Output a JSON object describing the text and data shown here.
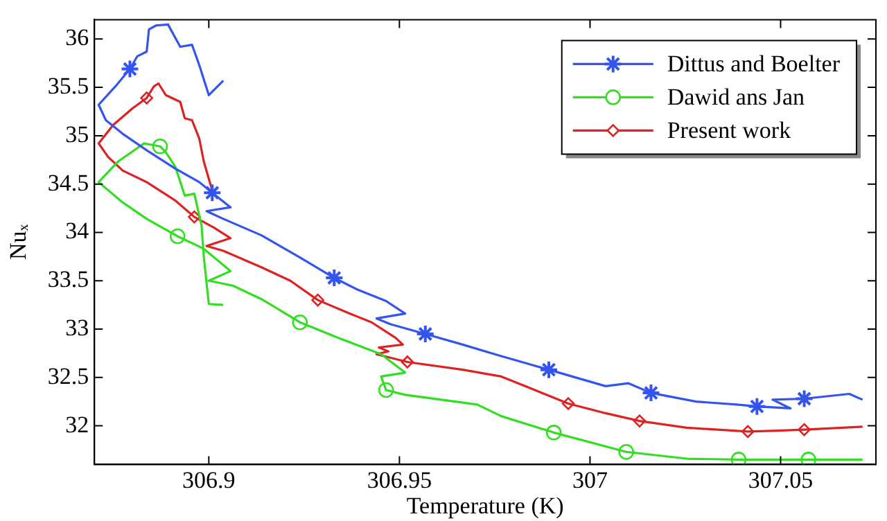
{
  "chart_data": {
    "type": "line",
    "xlabel": "Temperature (K)",
    "ylabel": "Nuₓ",
    "xlim": [
      306.87,
      307.075
    ],
    "ylim": [
      31.6,
      36.2
    ],
    "xticks": [
      306.9,
      306.95,
      307,
      307.05
    ],
    "yticks": [
      32,
      32.5,
      33,
      33.5,
      34,
      34.5,
      35,
      35.5,
      36
    ],
    "legend": "top right",
    "line_style": "solid",
    "series": [
      {
        "name": "Dittus and Boelter",
        "color": "#3355ee",
        "marker": "none",
        "x": [
          306.9038,
          306.9,
          306.8975,
          306.8956,
          306.8925,
          306.8893,
          306.8862,
          306.8843,
          306.8837,
          306.8812,
          306.8793,
          306.8755,
          306.8711,
          306.873,
          306.8774,
          306.8837,
          306.8912,
          306.8975,
          306.9009,
          306.9057,
          306.8994,
          306.9038,
          306.9138,
          306.9239,
          306.9329,
          306.9389,
          306.9465,
          306.9515,
          306.944,
          306.9477,
          306.9568,
          306.9666,
          306.9767,
          306.9892,
          307.0041,
          307.0101,
          307.016,
          307.0278,
          307.0384,
          307.0438,
          307.0526,
          307.0479,
          307.0562,
          307.068,
          307.0715
        ],
        "values": [
          35.57,
          35.42,
          35.73,
          35.94,
          35.92,
          36.15,
          36.14,
          36.1,
          35.87,
          35.82,
          35.69,
          35.51,
          35.32,
          35.16,
          35.02,
          34.85,
          34.66,
          34.52,
          34.41,
          34.26,
          34.22,
          34.14,
          33.97,
          33.74,
          33.53,
          33.41,
          33.29,
          33.16,
          33.11,
          33.05,
          32.95,
          32.84,
          32.72,
          32.58,
          32.41,
          32.44,
          32.34,
          32.25,
          32.22,
          32.2,
          32.18,
          32.27,
          32.28,
          32.33,
          32.27
        ]
      },
      {
        "type": "scatter",
        "color": "#3355ee",
        "marker": "cross",
        "x": [
          306.8793,
          306.9009,
          306.9329,
          306.9568,
          306.9892,
          307.016,
          307.0438,
          307.0562
        ],
        "values": [
          35.69,
          34.41,
          33.53,
          32.95,
          32.58,
          32.34,
          32.2,
          32.28
        ]
      },
      {
        "name": "Dawid ans Jan",
        "color": "#33dd22",
        "marker": "none",
        "x": [
          306.9038,
          306.9,
          306.8987,
          306.8981,
          306.8962,
          306.8937,
          306.8912,
          306.8887,
          306.8872,
          306.883,
          306.8761,
          306.8711,
          306.8774,
          306.8837,
          306.8918,
          306.8987,
          306.9057,
          306.9,
          306.9063,
          306.9138,
          306.9239,
          306.9339,
          306.9452,
          306.9515,
          306.9452,
          306.9465,
          306.9515,
          306.9704,
          306.9767,
          306.9905,
          307.0095,
          307.0254,
          307.039,
          307.0573,
          307.0715
        ],
        "values": [
          33.25,
          33.26,
          33.74,
          34.07,
          34.4,
          34.38,
          34.68,
          34.83,
          34.89,
          34.92,
          34.73,
          34.52,
          34.31,
          34.14,
          33.96,
          33.83,
          33.6,
          33.5,
          33.45,
          33.31,
          33.07,
          32.91,
          32.74,
          32.55,
          32.51,
          32.37,
          32.32,
          32.22,
          32.1,
          31.93,
          31.73,
          31.66,
          31.65,
          31.65,
          31.65
        ]
      },
      {
        "type": "scatter",
        "color": "#33dd22",
        "marker": "circle",
        "x": [
          306.8872,
          306.8918,
          306.9239,
          306.9465,
          306.9905,
          307.0095,
          307.039,
          307.0573
        ],
        "values": [
          34.89,
          33.96,
          33.07,
          32.37,
          31.93,
          31.73,
          31.65,
          31.65
        ]
      },
      {
        "name": "Present work",
        "color": "#dd2222",
        "marker": "none",
        "x": [
          306.9013,
          306.8987,
          306.8975,
          306.8956,
          306.8937,
          306.8925,
          306.8887,
          306.8868,
          306.8856,
          306.8837,
          306.8799,
          306.8749,
          306.8711,
          306.8736,
          306.8774,
          306.8837,
          306.8912,
          306.8962,
          306.9013,
          306.9057,
          306.8994,
          306.9038,
          306.9138,
          306.9214,
          306.9286,
          306.9364,
          306.9427,
          306.949,
          306.9509,
          306.9446,
          306.9471,
          306.944,
          306.9521,
          306.9666,
          306.9767,
          306.9943,
          307.0041,
          307.013,
          307.0254,
          307.0414,
          307.0491,
          307.0562,
          307.0715
        ],
        "values": [
          34.38,
          34.73,
          34.97,
          35.16,
          35.18,
          35.35,
          35.42,
          35.54,
          35.51,
          35.39,
          35.28,
          35.11,
          34.92,
          34.78,
          34.64,
          34.52,
          34.33,
          34.16,
          34.05,
          33.94,
          33.86,
          33.81,
          33.64,
          33.5,
          33.3,
          33.17,
          33.07,
          32.91,
          32.84,
          32.81,
          32.77,
          32.74,
          32.66,
          32.58,
          32.51,
          32.23,
          32.13,
          32.05,
          31.98,
          31.94,
          31.95,
          31.96,
          31.99
        ]
      },
      {
        "type": "scatter",
        "color": "#dd2222",
        "marker": "diamond",
        "x": [
          306.8837,
          306.8962,
          306.9286,
          306.9521,
          306.9943,
          307.013,
          307.0414,
          307.0562
        ],
        "values": [
          35.39,
          34.16,
          33.3,
          32.66,
          32.23,
          32.05,
          31.94,
          31.96
        ]
      }
    ]
  }
}
